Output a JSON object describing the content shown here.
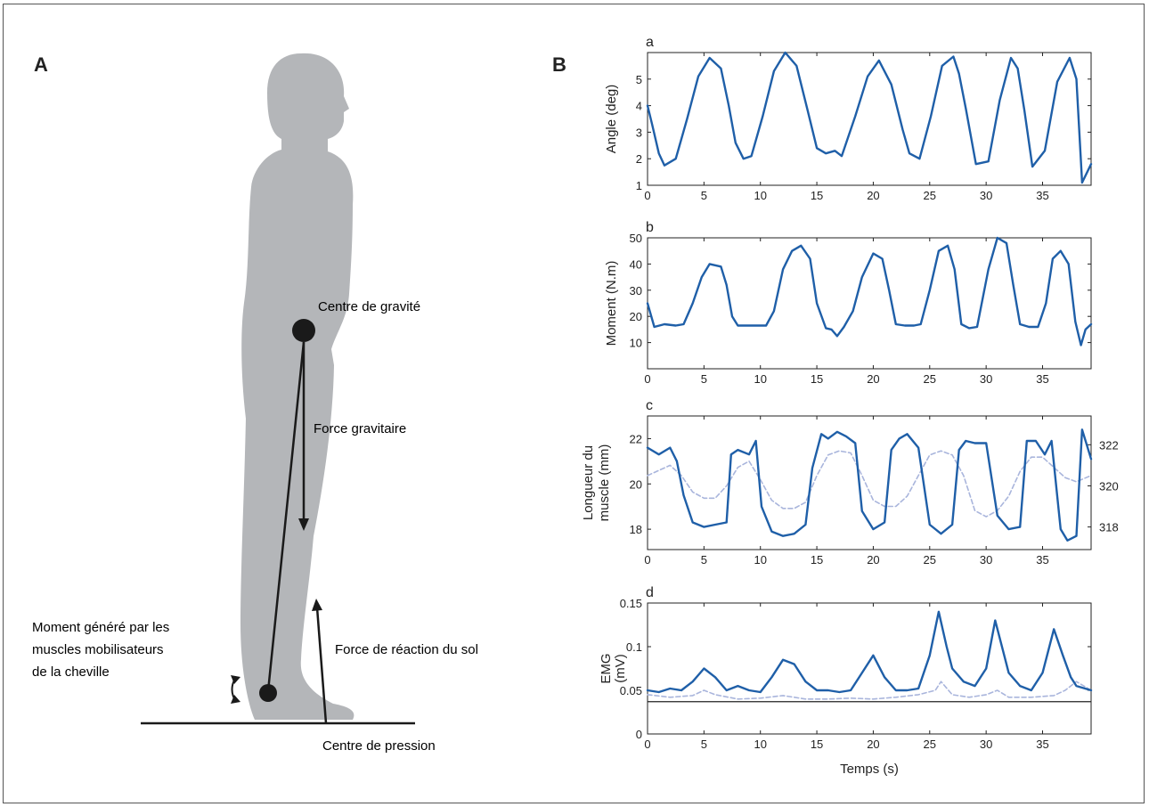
{
  "panels": {
    "A": "A",
    "B": "B"
  },
  "figure_a": {
    "labels": {
      "cog": "Centre de gravité",
      "gravity_force": "Force gravitaire",
      "moment_l1": "Moment généré par les",
      "moment_l2": "muscles mobilisateurs",
      "moment_l3": "de la cheville",
      "grf": "Force de réaction du sol",
      "cop": "Centre de pression"
    },
    "colors": {
      "silhouette": "#b4b6b9",
      "ink": "#1a1a1a"
    }
  },
  "colors": {
    "primary": "#1f5fa8",
    "secondary": "#a9b5dc"
  },
  "chart_data": [
    {
      "id": "a",
      "letter": "a",
      "type": "line",
      "ylabel": "Angle (deg)",
      "xlim": [
        0,
        39.3
      ],
      "ylim": [
        1,
        6
      ],
      "yticks": [
        1,
        2,
        3,
        4,
        5
      ],
      "xticks": [
        0,
        5,
        10,
        15,
        20,
        25,
        30,
        35
      ],
      "series": [
        {
          "x": [
            0,
            0.4,
            1,
            1.5,
            2.5,
            3.5,
            4.5,
            5.5,
            6.5,
            7.2,
            7.8,
            8.5,
            9.2,
            10.2,
            11.2,
            12.2,
            13.2,
            14.2,
            15,
            15.8,
            16.6,
            17.2,
            18.4,
            19.5,
            20.5,
            21.6,
            22.6,
            23.2,
            24.1,
            25.1,
            26.1,
            27.1,
            27.6,
            28.2,
            29.1,
            30.2,
            31.2,
            32.2,
            32.8,
            33.4,
            34.1,
            35.2,
            36.3,
            37.4,
            38,
            38.5,
            39.3
          ],
          "y": [
            4,
            3.3,
            2.2,
            1.75,
            2,
            3.5,
            5.1,
            5.8,
            5.4,
            4,
            2.6,
            2,
            2.1,
            3.6,
            5.3,
            6,
            5.5,
            3.8,
            2.4,
            2.2,
            2.3,
            2.1,
            3.6,
            5.1,
            5.7,
            4.8,
            3.1,
            2.2,
            2,
            3.6,
            5.5,
            5.85,
            5.2,
            3.9,
            1.8,
            1.9,
            4.2,
            5.8,
            5.4,
            3.8,
            1.7,
            2.3,
            4.9,
            5.8,
            5,
            1.1,
            1.8
          ]
        }
      ]
    },
    {
      "id": "b",
      "letter": "b",
      "type": "line",
      "ylabel": "Moment (N.m)",
      "xlim": [
        0,
        39.3
      ],
      "ylim": [
        0,
        50
      ],
      "yticks": [
        10,
        20,
        30,
        40,
        50
      ],
      "xticks": [
        0,
        5,
        10,
        15,
        20,
        25,
        30,
        35
      ],
      "series": [
        {
          "x": [
            0,
            0.6,
            1.5,
            2.5,
            3.2,
            4,
            4.8,
            5.5,
            6.5,
            7,
            7.5,
            8,
            8.5,
            9.5,
            10.5,
            11.2,
            12,
            12.8,
            13.6,
            14.4,
            15,
            15.8,
            16.3,
            16.8,
            17.4,
            18.2,
            19,
            20,
            20.8,
            21.4,
            22,
            22.8,
            23.6,
            24.2,
            25,
            25.8,
            26.6,
            27.2,
            27.8,
            28.5,
            29.2,
            30.2,
            31,
            31.8,
            32.4,
            33,
            33.8,
            34.6,
            35.3,
            35.9,
            36.6,
            37.3,
            37.9,
            38.4,
            38.8,
            39.3
          ],
          "y": [
            25,
            16,
            17,
            16.5,
            17,
            25,
            35,
            40,
            39,
            32,
            20,
            16.5,
            16.5,
            16.5,
            16.5,
            22,
            38,
            45,
            47,
            42,
            25,
            15.5,
            15,
            12.5,
            16,
            22,
            35,
            44,
            42,
            30,
            17,
            16.5,
            16.5,
            17,
            30,
            45,
            47,
            38,
            17,
            15.5,
            16,
            38,
            50,
            48,
            32,
            17,
            16,
            16,
            25,
            42,
            45,
            40,
            18,
            9,
            15,
            17
          ]
        }
      ]
    },
    {
      "id": "c",
      "letter": "c",
      "type": "line",
      "ylabel_lines": [
        "Longueur du",
        "muscle (mm)"
      ],
      "xlim": [
        0,
        39.3
      ],
      "ylim": [
        17.1,
        23
      ],
      "yticks": [
        18,
        20,
        22
      ],
      "xticks": [
        0,
        5,
        10,
        15,
        20,
        25,
        30,
        35
      ],
      "y2lim": [
        316.9,
        323.4
      ],
      "y2ticks": [
        318,
        320,
        322
      ],
      "series": [
        {
          "axis": "right",
          "style": "secondary",
          "x": [
            0,
            2,
            3,
            4,
            5,
            6,
            7,
            8,
            9,
            10,
            11,
            12,
            13,
            14,
            15,
            16,
            17,
            18,
            19,
            20,
            21,
            22,
            23,
            24,
            25,
            26,
            27,
            28,
            29,
            30,
            31,
            32,
            33,
            34,
            35,
            36,
            37,
            38,
            39.3
          ],
          "y": [
            320.5,
            321,
            320.5,
            319.7,
            319.4,
            319.4,
            320,
            320.9,
            321.2,
            320.3,
            319.3,
            318.9,
            318.9,
            319.2,
            320.5,
            321.5,
            321.7,
            321.6,
            320.5,
            319.3,
            319,
            319,
            319.5,
            320.5,
            321.5,
            321.7,
            321.5,
            320.5,
            318.8,
            318.5,
            318.8,
            319.5,
            320.7,
            321.4,
            321.4,
            320.9,
            320.4,
            320.2,
            320.5
          ]
        },
        {
          "axis": "left",
          "style": "primary",
          "x": [
            0,
            1,
            2,
            2.6,
            3.2,
            4,
            5,
            6,
            7,
            7.4,
            8,
            9,
            9.6,
            10.1,
            11,
            12,
            13,
            14,
            14.6,
            15.4,
            16,
            16.8,
            17.6,
            18.4,
            19,
            20,
            21,
            21.6,
            22.3,
            23,
            24,
            25,
            26,
            27,
            27.6,
            28.2,
            29,
            30,
            31,
            32,
            33,
            33.6,
            34.4,
            35.2,
            35.8,
            36.6,
            37.2,
            38,
            38.5,
            39.3
          ],
          "y": [
            21.6,
            21.3,
            21.6,
            21,
            19.5,
            18.3,
            18.1,
            18.2,
            18.3,
            21.3,
            21.5,
            21.3,
            21.9,
            19,
            17.9,
            17.7,
            17.8,
            18.2,
            20.7,
            22.2,
            22,
            22.3,
            22.1,
            21.8,
            18.8,
            18,
            18.3,
            21.5,
            22,
            22.2,
            21.6,
            18.2,
            17.8,
            18.2,
            21.5,
            21.9,
            21.8,
            21.8,
            18.6,
            18,
            18.1,
            21.9,
            21.9,
            21.3,
            21.9,
            18,
            17.5,
            17.7,
            22.4,
            21.1
          ]
        }
      ]
    },
    {
      "id": "d",
      "letter": "d",
      "type": "line",
      "ylabel_lines": [
        "EMG",
        "(mV)"
      ],
      "xlabel": "Temps (s)",
      "xlim": [
        0,
        39.3
      ],
      "ylim": [
        0,
        0.15
      ],
      "yticks": [
        0,
        0.05,
        0.1,
        0.15
      ],
      "ytick_labels": [
        "0",
        "0.05",
        "0.1",
        "0.15"
      ],
      "xticks": [
        0,
        5,
        10,
        15,
        20,
        25,
        30,
        35
      ],
      "baseline": 0.037,
      "series": [
        {
          "style": "secondary",
          "x": [
            0,
            2,
            4,
            5,
            6,
            8,
            10,
            12,
            14,
            16,
            18,
            20,
            22,
            24,
            25.5,
            26,
            27,
            28.5,
            30,
            31,
            32,
            34,
            36,
            37,
            38,
            39.3
          ],
          "y": [
            0.045,
            0.042,
            0.044,
            0.05,
            0.045,
            0.04,
            0.041,
            0.044,
            0.04,
            0.04,
            0.041,
            0.04,
            0.042,
            0.045,
            0.05,
            0.06,
            0.045,
            0.042,
            0.045,
            0.05,
            0.042,
            0.042,
            0.044,
            0.05,
            0.06,
            0.05
          ]
        },
        {
          "style": "primary",
          "x": [
            0,
            1,
            2,
            3,
            4,
            5,
            6,
            7,
            8,
            9,
            10,
            11,
            12,
            13,
            14,
            15,
            16,
            17,
            18,
            19,
            20,
            21,
            22,
            23,
            24,
            25,
            25.8,
            26.5,
            27,
            28,
            29,
            30,
            30.8,
            31.5,
            32,
            33,
            34,
            35,
            36,
            36.8,
            37.5,
            38,
            39.3
          ],
          "y": [
            0.05,
            0.048,
            0.052,
            0.05,
            0.06,
            0.075,
            0.065,
            0.05,
            0.055,
            0.05,
            0.048,
            0.065,
            0.085,
            0.08,
            0.06,
            0.05,
            0.05,
            0.048,
            0.05,
            0.07,
            0.09,
            0.065,
            0.05,
            0.05,
            0.052,
            0.09,
            0.14,
            0.1,
            0.075,
            0.06,
            0.055,
            0.075,
            0.13,
            0.095,
            0.07,
            0.055,
            0.05,
            0.07,
            0.12,
            0.09,
            0.065,
            0.055,
            0.05
          ]
        }
      ]
    }
  ]
}
